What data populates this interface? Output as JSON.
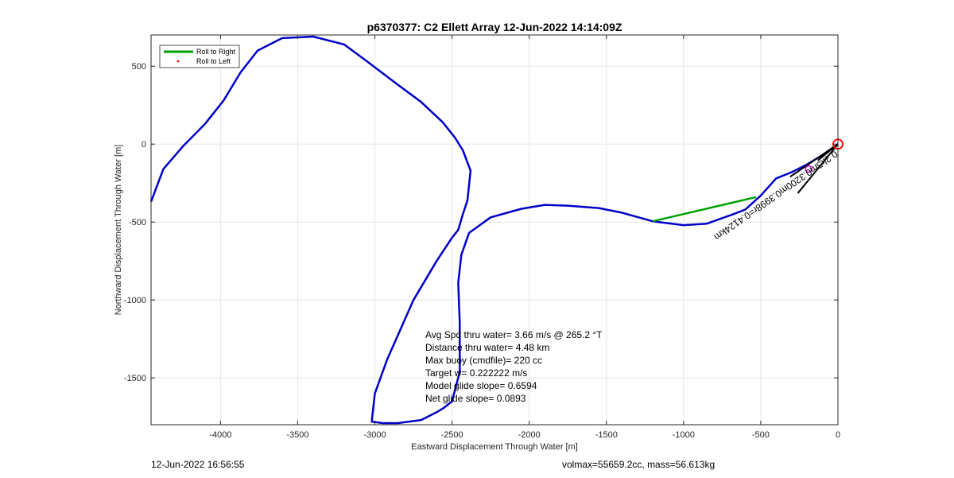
{
  "chart_data": {
    "type": "line",
    "title": "p6370377: C2 Ellett Array 12-Jun-2022 14:14:09Z",
    "xlabel": "Eastward Displacement Through Water [m]",
    "ylabel": "Northward Displacement Through Water [m]",
    "xlim": [
      -4450,
      0
    ],
    "ylim": [
      -1800,
      700
    ],
    "xticks": [
      -4000,
      -3500,
      -3000,
      -2500,
      -2000,
      -1500,
      -1000,
      -500,
      0
    ],
    "yticks": [
      500,
      0,
      -500,
      -1000,
      -1500
    ],
    "grid": true,
    "legend": {
      "placement": "top-left",
      "entries": [
        {
          "label": "Roll to Right",
          "color": "#00a000",
          "style": "line"
        },
        {
          "label": "Roll to Left",
          "color": "#ff0000",
          "style": "dot"
        }
      ]
    },
    "series": [
      {
        "color": "#0000c8",
        "x": [
          0,
          -100,
          -200,
          -300,
          -400,
          -500,
          -600,
          -680,
          -850,
          -1000,
          -1200,
          -1400,
          -1550,
          -1750,
          -1900,
          -2050,
          -2250,
          -2390,
          -2440,
          -2460,
          -2450,
          -2450,
          -2500,
          -2550,
          -2600,
          -2700,
          -2850,
          -2950,
          -3020,
          -3000,
          -2920,
          -2750,
          -2600,
          -2500,
          -2460,
          -2430,
          -2400,
          -2380,
          -2430,
          -2480,
          -2560,
          -2700,
          -2850,
          -3050,
          -3200,
          -3400,
          -3600,
          -3760,
          -3870,
          -3980,
          -4100,
          -4240,
          -4370,
          -4450
        ],
        "y": [
          0,
          -70,
          -130,
          -180,
          -220,
          -330,
          -420,
          -450,
          -510,
          -520,
          -495,
          -440,
          -410,
          -395,
          -390,
          -415,
          -470,
          -570,
          -710,
          -890,
          -1150,
          -1460,
          -1650,
          -1690,
          -1720,
          -1770,
          -1790,
          -1790,
          -1780,
          -1600,
          -1380,
          -1000,
          -750,
          -600,
          -550,
          -450,
          -360,
          -170,
          -40,
          40,
          140,
          270,
          380,
          530,
          640,
          690,
          680,
          600,
          460,
          280,
          130,
          -10,
          -160,
          -370
        ]
      }
    ],
    "green_segment": {
      "x": [
        -1200,
        -530
      ],
      "y": [
        -495,
        -340
      ]
    },
    "vectors": [
      {
        "x": [
          0,
          -310
        ],
        "y": [
          0,
          -210
        ]
      },
      {
        "x": [
          0,
          -260
        ],
        "y": [
          0,
          -315
        ]
      },
      {
        "x": [
          0,
          -130
        ],
        "y": [
          0,
          -105
        ]
      }
    ],
    "start_marker": {
      "x": 0,
      "y": 0,
      "color": "#ff0000"
    },
    "annotations": {
      "rotated": "0.2k5m0.3200m0.3998r=0.4124km",
      "stats": [
        "Avg Spd thru water=  3.66 m/s @ 265.2 °T",
        "Distance thru water=  4.48 km",
        "Max buoy (cmdfile)= 220 cc",
        "Target w= 0.222222 m/s",
        "Model glide slope= 0.6594",
        "Net glide slope= 0.0893"
      ]
    }
  },
  "footer": {
    "left": "12-Jun-2022 16:56:55",
    "right": "volmax=55659.2cc, mass=56.613kg"
  }
}
